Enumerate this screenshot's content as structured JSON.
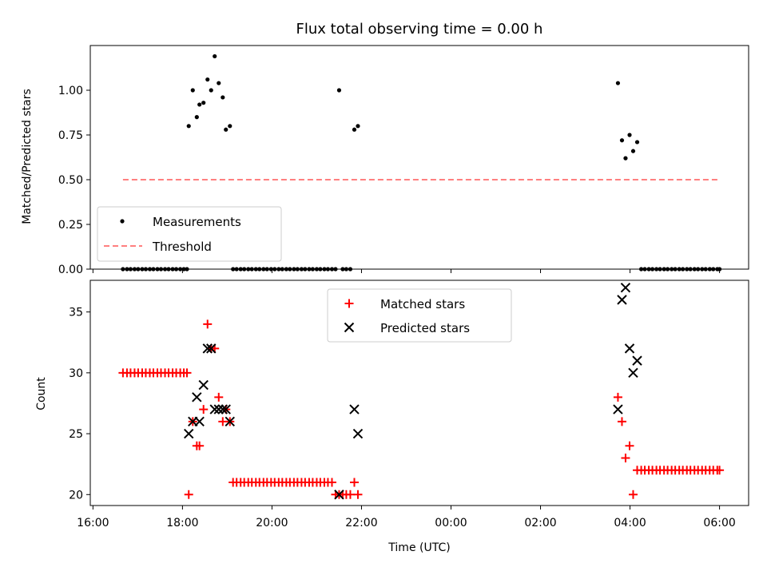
{
  "chart_data": [
    {
      "type": "scatter",
      "title": "Flux total observing time = 0.00 h",
      "ylabel": "Matched/Predicted stars",
      "xlabel": "",
      "xlim": [
        15.94,
        30.65
      ],
      "ylim": [
        0,
        1.25
      ],
      "yticks": [
        "0.00",
        "0.25",
        "0.50",
        "0.75",
        "1.00"
      ],
      "legend_position": "lower-left",
      "legend": [
        {
          "label": "Measurements",
          "marker": "dot",
          "color": "#000000"
        },
        {
          "label": "Threshold",
          "marker": "dashed-line",
          "color": "#ff7f7f"
        }
      ],
      "threshold": {
        "value": 0.5,
        "x_range": [
          16.67,
          30.0
        ],
        "color": "#ff7f7f"
      },
      "series": [
        {
          "name": "Measurements",
          "color": "#000000",
          "points": [
            [
              18.14,
              0.8
            ],
            [
              18.23,
              1.0
            ],
            [
              18.32,
              0.85
            ],
            [
              18.38,
              0.92
            ],
            [
              18.47,
              0.93
            ],
            [
              18.56,
              1.06
            ],
            [
              18.64,
              1.0
            ],
            [
              18.72,
              1.19
            ],
            [
              18.81,
              1.04
            ],
            [
              18.9,
              0.96
            ],
            [
              18.97,
              0.78
            ],
            [
              19.06,
              0.8
            ],
            [
              21.5,
              1.0
            ],
            [
              21.84,
              0.78
            ],
            [
              21.92,
              0.8
            ],
            [
              27.73,
              1.04
            ],
            [
              27.82,
              0.72
            ],
            [
              27.9,
              0.62
            ],
            [
              27.99,
              0.75
            ],
            [
              28.07,
              0.66
            ],
            [
              28.16,
              0.71
            ],
            [
              16.67,
              0
            ],
            [
              16.76,
              0
            ],
            [
              16.84,
              0
            ],
            [
              16.93,
              0
            ],
            [
              17.01,
              0
            ],
            [
              17.1,
              0
            ],
            [
              17.18,
              0
            ],
            [
              17.27,
              0
            ],
            [
              17.35,
              0
            ],
            [
              17.44,
              0
            ],
            [
              17.52,
              0
            ],
            [
              17.61,
              0
            ],
            [
              17.69,
              0
            ],
            [
              17.78,
              0
            ],
            [
              17.86,
              0
            ],
            [
              17.95,
              0
            ],
            [
              18.03,
              0
            ],
            [
              18.1,
              0
            ],
            [
              19.13,
              0
            ],
            [
              19.21,
              0
            ],
            [
              19.3,
              0
            ],
            [
              19.38,
              0
            ],
            [
              19.47,
              0
            ],
            [
              19.55,
              0
            ],
            [
              19.64,
              0
            ],
            [
              19.72,
              0
            ],
            [
              19.81,
              0
            ],
            [
              19.89,
              0
            ],
            [
              19.98,
              0
            ],
            [
              20.06,
              0
            ],
            [
              20.15,
              0
            ],
            [
              20.23,
              0
            ],
            [
              20.32,
              0
            ],
            [
              20.4,
              0
            ],
            [
              20.49,
              0
            ],
            [
              20.57,
              0
            ],
            [
              20.66,
              0
            ],
            [
              20.74,
              0
            ],
            [
              20.83,
              0
            ],
            [
              20.91,
              0
            ],
            [
              21.0,
              0
            ],
            [
              21.08,
              0
            ],
            [
              21.17,
              0
            ],
            [
              21.25,
              0
            ],
            [
              21.34,
              0
            ],
            [
              21.42,
              0
            ],
            [
              21.58,
              0
            ],
            [
              21.66,
              0
            ],
            [
              21.75,
              0
            ],
            [
              28.25,
              0
            ],
            [
              28.33,
              0
            ],
            [
              28.42,
              0
            ],
            [
              28.5,
              0
            ],
            [
              28.59,
              0
            ],
            [
              28.67,
              0
            ],
            [
              28.76,
              0
            ],
            [
              28.84,
              0
            ],
            [
              28.93,
              0
            ],
            [
              29.01,
              0
            ],
            [
              29.1,
              0
            ],
            [
              29.18,
              0
            ],
            [
              29.27,
              0
            ],
            [
              29.35,
              0
            ],
            [
              29.44,
              0
            ],
            [
              29.52,
              0
            ],
            [
              29.61,
              0
            ],
            [
              29.69,
              0
            ],
            [
              29.78,
              0
            ],
            [
              29.86,
              0
            ],
            [
              29.95,
              0
            ],
            [
              30.0,
              0
            ]
          ]
        }
      ]
    },
    {
      "type": "scatter",
      "title": "",
      "ylabel": "Count",
      "xlabel": "Time (UTC)",
      "xlim": [
        15.94,
        30.65
      ],
      "ylim": [
        19.1,
        37.6
      ],
      "yticks": [
        "20",
        "25",
        "30",
        "35"
      ],
      "xticks": [
        {
          "value": 16,
          "label": "16:00"
        },
        {
          "value": 18,
          "label": "18:00"
        },
        {
          "value": 20,
          "label": "20:00"
        },
        {
          "value": 22,
          "label": "22:00"
        },
        {
          "value": 24,
          "label": "00:00"
        },
        {
          "value": 26,
          "label": "02:00"
        },
        {
          "value": 28,
          "label": "04:00"
        },
        {
          "value": 30,
          "label": "06:00"
        }
      ],
      "legend_position": "upper-center",
      "legend": [
        {
          "label": "Matched stars",
          "marker": "plus",
          "color": "#ff0000"
        },
        {
          "label": "Predicted stars",
          "marker": "x",
          "color": "#000000"
        }
      ],
      "series": [
        {
          "name": "Matched stars",
          "color": "#ff0000",
          "points": [
            [
              16.67,
              30
            ],
            [
              16.76,
              30
            ],
            [
              16.84,
              30
            ],
            [
              16.93,
              30
            ],
            [
              17.01,
              30
            ],
            [
              17.1,
              30
            ],
            [
              17.18,
              30
            ],
            [
              17.27,
              30
            ],
            [
              17.35,
              30
            ],
            [
              17.44,
              30
            ],
            [
              17.52,
              30
            ],
            [
              17.61,
              30
            ],
            [
              17.69,
              30
            ],
            [
              17.78,
              30
            ],
            [
              17.86,
              30
            ],
            [
              17.95,
              30
            ],
            [
              18.03,
              30
            ],
            [
              18.1,
              30
            ],
            [
              18.14,
              20
            ],
            [
              18.23,
              26
            ],
            [
              18.32,
              24
            ],
            [
              18.38,
              24
            ],
            [
              18.47,
              27
            ],
            [
              18.56,
              34
            ],
            [
              18.64,
              32
            ],
            [
              18.72,
              32
            ],
            [
              18.81,
              28
            ],
            [
              18.9,
              26
            ],
            [
              18.97,
              27
            ],
            [
              19.06,
              26
            ],
            [
              19.13,
              21
            ],
            [
              19.21,
              21
            ],
            [
              19.3,
              21
            ],
            [
              19.38,
              21
            ],
            [
              19.47,
              21
            ],
            [
              19.55,
              21
            ],
            [
              19.64,
              21
            ],
            [
              19.72,
              21
            ],
            [
              19.81,
              21
            ],
            [
              19.89,
              21
            ],
            [
              19.98,
              21
            ],
            [
              20.06,
              21
            ],
            [
              20.15,
              21
            ],
            [
              20.23,
              21
            ],
            [
              20.32,
              21
            ],
            [
              20.4,
              21
            ],
            [
              20.49,
              21
            ],
            [
              20.57,
              21
            ],
            [
              20.66,
              21
            ],
            [
              20.74,
              21
            ],
            [
              20.83,
              21
            ],
            [
              20.91,
              21
            ],
            [
              21.0,
              21
            ],
            [
              21.08,
              21
            ],
            [
              21.17,
              21
            ],
            [
              21.25,
              21
            ],
            [
              21.34,
              21
            ],
            [
              21.42,
              20
            ],
            [
              21.5,
              20
            ],
            [
              21.58,
              20
            ],
            [
              21.66,
              20
            ],
            [
              21.75,
              20
            ],
            [
              21.84,
              21
            ],
            [
              21.92,
              20
            ],
            [
              27.73,
              28
            ],
            [
              27.82,
              26
            ],
            [
              27.9,
              23
            ],
            [
              27.99,
              24
            ],
            [
              28.07,
              20
            ],
            [
              28.16,
              22
            ],
            [
              28.25,
              22
            ],
            [
              28.33,
              22
            ],
            [
              28.42,
              22
            ],
            [
              28.5,
              22
            ],
            [
              28.59,
              22
            ],
            [
              28.67,
              22
            ],
            [
              28.76,
              22
            ],
            [
              28.84,
              22
            ],
            [
              28.93,
              22
            ],
            [
              29.01,
              22
            ],
            [
              29.1,
              22
            ],
            [
              29.18,
              22
            ],
            [
              29.27,
              22
            ],
            [
              29.35,
              22
            ],
            [
              29.44,
              22
            ],
            [
              29.52,
              22
            ],
            [
              29.61,
              22
            ],
            [
              29.69,
              22
            ],
            [
              29.78,
              22
            ],
            [
              29.86,
              22
            ],
            [
              29.95,
              22
            ],
            [
              30.0,
              22
            ]
          ]
        },
        {
          "name": "Predicted stars",
          "color": "#000000",
          "points": [
            [
              18.14,
              25
            ],
            [
              18.23,
              26
            ],
            [
              18.32,
              28
            ],
            [
              18.38,
              26
            ],
            [
              18.47,
              29
            ],
            [
              18.56,
              32
            ],
            [
              18.64,
              32
            ],
            [
              18.72,
              27
            ],
            [
              18.81,
              27
            ],
            [
              18.9,
              27
            ],
            [
              18.97,
              27
            ],
            [
              19.06,
              26
            ],
            [
              21.5,
              20
            ],
            [
              21.84,
              27
            ],
            [
              21.92,
              25
            ],
            [
              27.73,
              27
            ],
            [
              27.82,
              36
            ],
            [
              27.9,
              37
            ],
            [
              27.99,
              32
            ],
            [
              28.07,
              30
            ],
            [
              28.16,
              31
            ]
          ]
        }
      ]
    }
  ]
}
